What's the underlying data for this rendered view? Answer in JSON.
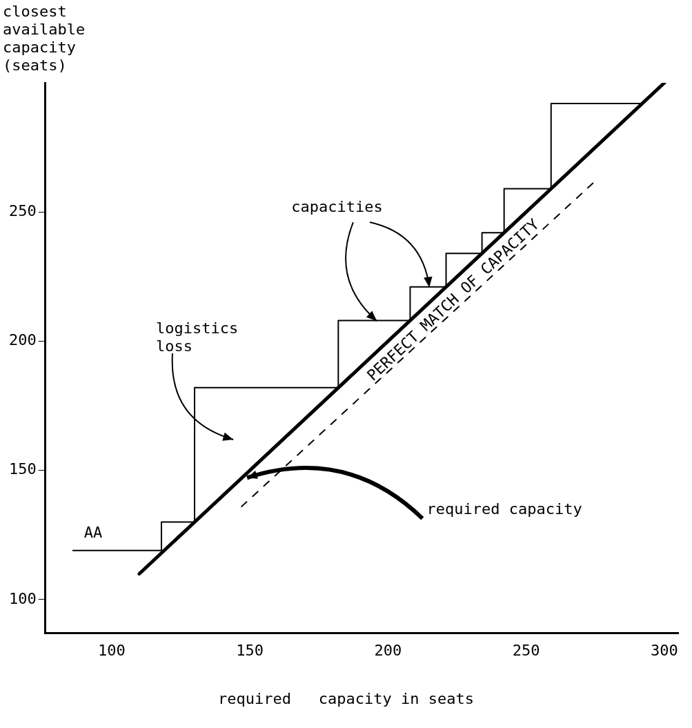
{
  "chart_data": {
    "type": "line",
    "xlabel": "required   capacity in seats",
    "ylabel": "closest available capacity (seats)",
    "xlim": [
      76,
      305
    ],
    "xticks": [
      100,
      150,
      200,
      250,
      300
    ],
    "ylim": [
      87,
      300
    ],
    "yticks": [
      100,
      150,
      200,
      250
    ],
    "grid": false,
    "legend": false,
    "marker": "none",
    "series": [
      {
        "type": "step",
        "color": "#000000",
        "x": [
          86,
          118,
          130,
          182,
          208,
          221,
          234,
          242,
          259,
          292
        ],
        "values": [
          119,
          130,
          182,
          208,
          221,
          234,
          242,
          259,
          292,
          292
        ]
      },
      {
        "name": "PERFECT MATCH OF CAPACITY",
        "color": "#000000",
        "x": [
          110,
          300
        ],
        "values": [
          110,
          300
        ]
      },
      {
        "line_style": "dashed",
        "color": "#000000",
        "x": [
          147,
          275
        ],
        "values": [
          136,
          262
        ]
      }
    ],
    "annotations": [
      {
        "text": "capacities",
        "x": 196,
        "y": 208
      },
      "logistics loss",
      {
        "text": "required capacity",
        "x": 149,
        "y": 147
      },
      "AA"
    ]
  }
}
